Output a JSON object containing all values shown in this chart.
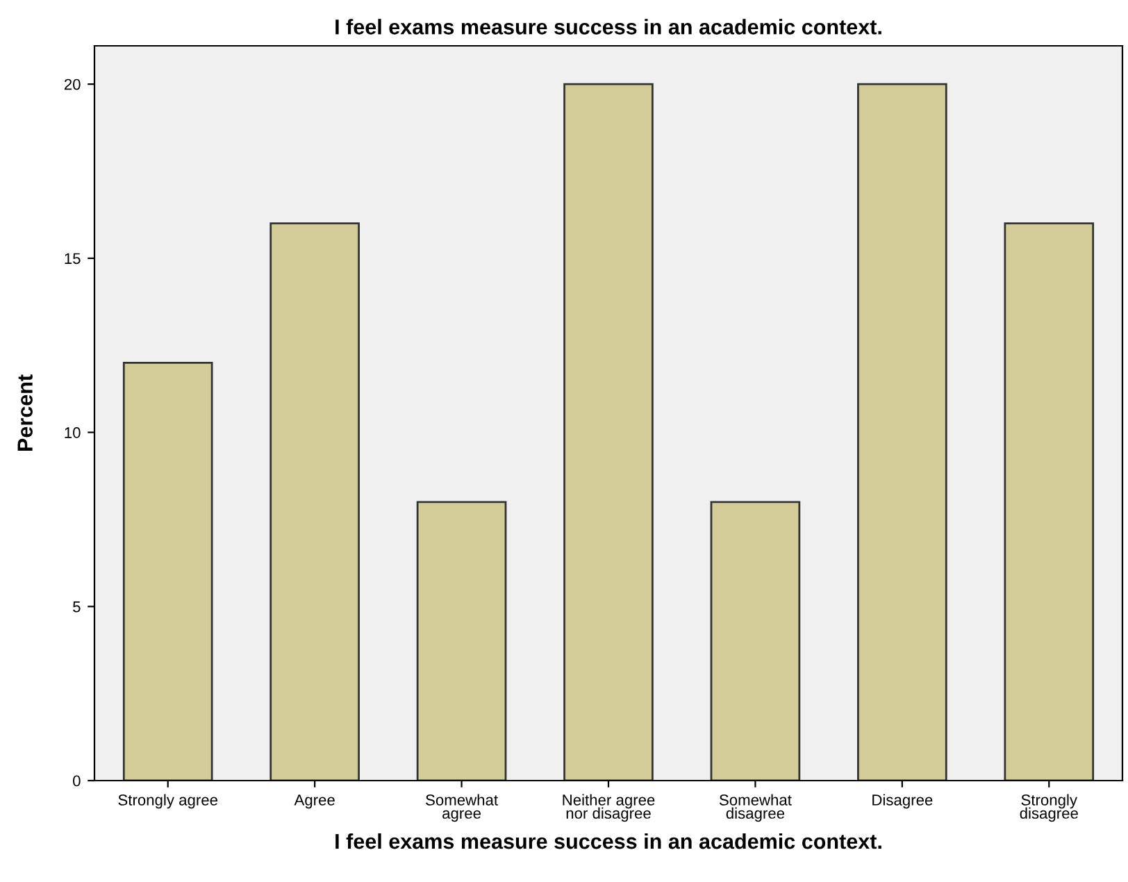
{
  "chart_data": {
    "type": "bar",
    "title": "I feel exams measure success in an academic context.",
    "xlabel": "I feel exams measure success in an academic context.",
    "ylabel": "Percent",
    "categories": [
      "Strongly agree",
      "Agree",
      "Somewhat\nagree",
      "Neither agree\nnor disagree",
      "Somewhat\ndisagree",
      "Disagree",
      "Strongly\ndisagree"
    ],
    "values": [
      12,
      16,
      8,
      20,
      8,
      20,
      16
    ],
    "color": "#d2cc98",
    "ylim": [
      0,
      21.1
    ],
    "yticks": [
      0,
      5,
      10,
      15,
      20
    ],
    "grid": false,
    "legend": false
  }
}
